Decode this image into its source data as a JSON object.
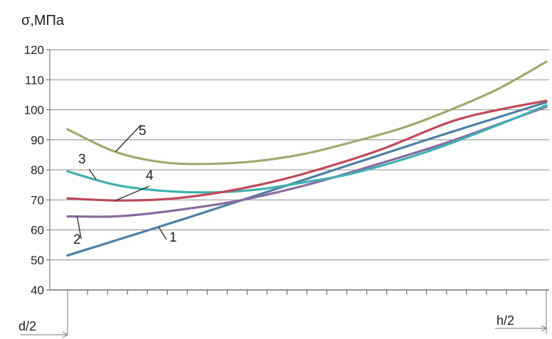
{
  "chart_data": {
    "type": "line",
    "ylabel": "σ,МПа",
    "yticks": [
      "40",
      "50",
      "60",
      "70",
      "80",
      "90",
      "100",
      "110",
      "120"
    ],
    "ylim": [
      40,
      120
    ],
    "xlim": [
      0,
      1
    ],
    "x_start_label": "d/2",
    "x_end_label": "h/2",
    "grid": true,
    "series": [
      {
        "name": "1",
        "color": "#4e7fa6",
        "x": [
          0,
          0.25,
          0.5,
          0.75,
          1.0
        ],
        "y": [
          51.5,
          64,
          77,
          90,
          102.5
        ]
      },
      {
        "name": "2",
        "color": "#8a6aa0",
        "x": [
          0,
          0.1,
          0.2,
          0.35,
          0.5,
          0.65,
          0.8,
          1.0
        ],
        "y": [
          64.5,
          64.5,
          66,
          69.5,
          75,
          82,
          89.5,
          101
        ]
      },
      {
        "name": "3",
        "color": "#3fb0b0",
        "x": [
          0,
          0.1,
          0.2,
          0.3,
          0.4,
          0.5,
          0.6,
          0.75,
          0.9,
          1.0
        ],
        "y": [
          79.5,
          75,
          73,
          72.5,
          73.5,
          76,
          79,
          86,
          95,
          101.5
        ]
      },
      {
        "name": "4",
        "color": "#c0485a",
        "x": [
          0,
          0.1,
          0.2,
          0.3,
          0.4,
          0.5,
          0.65,
          0.8,
          0.9,
          1.0
        ],
        "y": [
          70.5,
          69.8,
          70.2,
          72,
          75,
          79,
          86.5,
          96,
          100,
          103
        ]
      },
      {
        "name": "5",
        "color": "#9aac6e",
        "x": [
          0,
          0.1,
          0.2,
          0.3,
          0.4,
          0.5,
          0.6,
          0.7,
          0.8,
          0.9,
          1.0
        ],
        "y": [
          93.5,
          86,
          82.5,
          82,
          83,
          85.5,
          89.5,
          94,
          100,
          107,
          116
        ]
      }
    ]
  }
}
